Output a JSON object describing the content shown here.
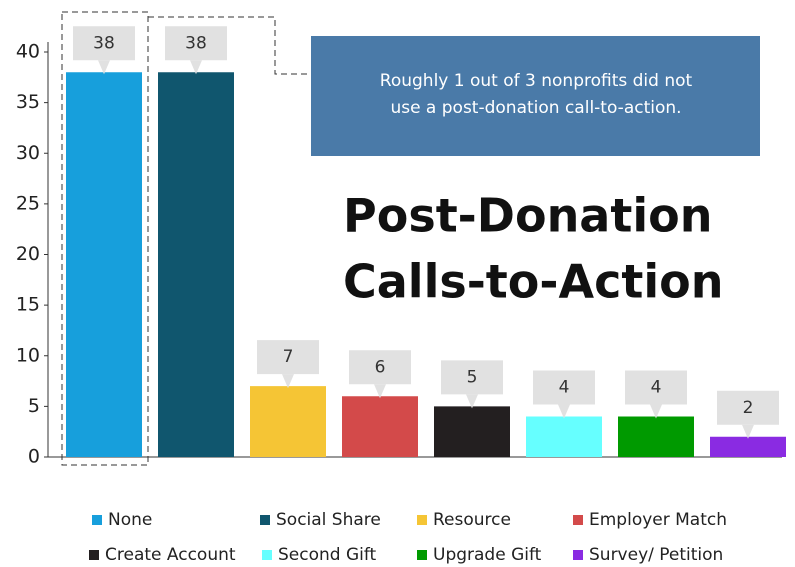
{
  "chart_data": {
    "type": "bar",
    "title": [
      "Post-Donation",
      "Calls-to-Action"
    ],
    "annotation": [
      "Roughly 1 out of 3 nonprofits did not",
      "use a post-donation call-to-action."
    ],
    "categories": [
      "None",
      "Social Share",
      "Resource",
      "Employer Match",
      "Create Account",
      "Second Gift",
      "Upgrade Gift",
      "Survey/ Petition"
    ],
    "values": [
      38,
      38,
      7,
      6,
      5,
      4,
      4,
      2
    ],
    "colors": [
      "#179fdc",
      "#10566e",
      "#f5c535",
      "#d34a4a",
      "#231f20",
      "#66ffff",
      "#009a00",
      "#8a2be2"
    ],
    "ylim": [
      0,
      40
    ],
    "yticks": [
      0,
      5,
      10,
      15,
      20,
      25,
      30,
      35,
      40
    ],
    "legend": "bottom"
  }
}
